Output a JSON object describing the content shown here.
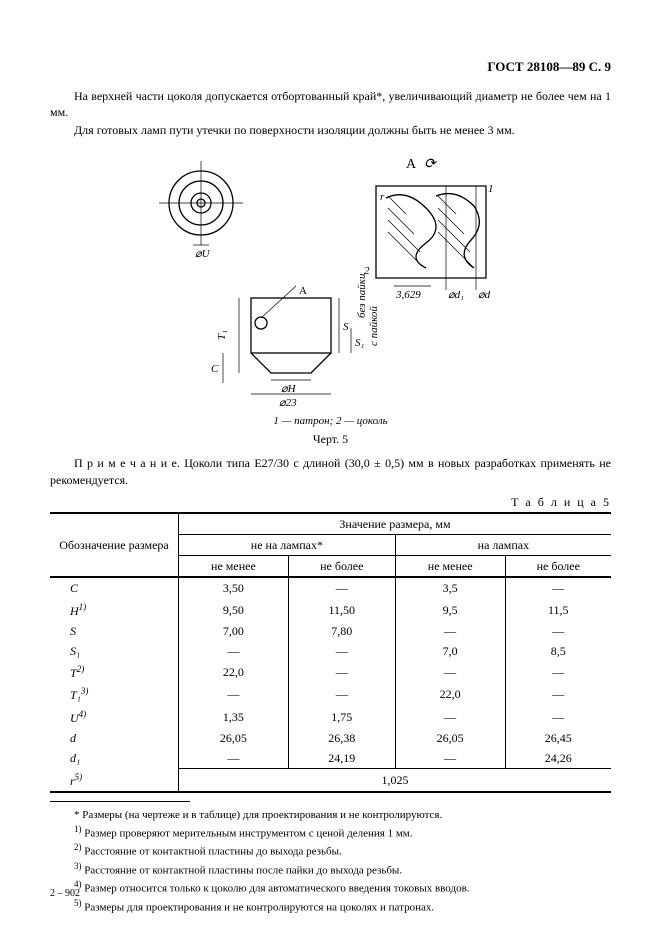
{
  "header": {
    "docid": "ГОСТ 28108—89 С. 9"
  },
  "body": {
    "p1": "На верхней части цоколя допускается отбортованный край*, увеличивающий диаметр не более чем на 1 мм.",
    "p2": "Для готовых ламп пути утечки по поверхности изоляции должны быть не менее 3 мм."
  },
  "figure": {
    "topRight": "A",
    "labels": {
      "one": "1",
      "two": "2",
      "threadDim": "3,629",
      "d": "⌀d",
      "d1": "⌀d₁",
      "r": "r",
      "U": "⌀U",
      "H": "⌀H",
      "T1": "T₁",
      "S": "S",
      "S1": "S₁",
      "C": "C",
      "A": "A",
      "base23": "⌀23",
      "sideNote1": "без пайки",
      "sideNote2": "с пайкой"
    },
    "caption1": "1 — патрон; 2 — цоколь",
    "caption2": "Черт. 5"
  },
  "note": {
    "lead": "П р и м е ч а н и е.",
    "text": " Цоколи типа Е27/30 с длиной (30,0 ± 0,5) мм в новых разработках применять не рекомендуется."
  },
  "table": {
    "label": "Т а б л и ц а  5",
    "headers": {
      "col1": "Обозначение размера",
      "group": "Значение размера, мм",
      "sub1": "не на лампах*",
      "sub2": "на лампах",
      "min": "не менее",
      "max": "не более"
    },
    "rows": [
      {
        "name": "C",
        "a": "3,50",
        "b": "—",
        "c": "3,5",
        "d": "—"
      },
      {
        "name": "H",
        "sup": "1)",
        "a": "9,50",
        "b": "11,50",
        "c": "9,5",
        "d": "11,5"
      },
      {
        "name": "S",
        "a": "7,00",
        "b": "7,80",
        "c": "—",
        "d": "—"
      },
      {
        "name": "S₁",
        "a": "—",
        "b": "—",
        "c": "7,0",
        "d": "8,5"
      },
      {
        "name": "T",
        "sup": "2)",
        "a": "22,0",
        "b": "—",
        "c": "—",
        "d": "—"
      },
      {
        "name": "T₁",
        "sup": "3)",
        "a": "—",
        "b": "—",
        "c": "22,0",
        "d": "—"
      },
      {
        "name": "U",
        "sup": "4)",
        "a": "1,35",
        "b": "1,75",
        "c": "—",
        "d": "—"
      },
      {
        "name": "d",
        "a": "26,05",
        "b": "26,38",
        "c": "26,05",
        "d": "26,45"
      },
      {
        "name": "d₁",
        "a": "—",
        "b": "24,19",
        "c": "—",
        "d": "24,26"
      }
    ],
    "finalRow": {
      "name": "r",
      "sup": "5)",
      "value": "1,025"
    }
  },
  "footnotes": {
    "star": "* Размеры (на чертеже и в таблице) для проектирования и не контролируются.",
    "n1": "Размер проверяют мерительным инструментом с ценой деления 1 мм.",
    "n2": "Расстояние от контактной пластины до выхода резьбы.",
    "n3": "Расстояние от контактной пластины после пайки до выхода резьбы.",
    "n4": "Размер относится только к цоколю для автоматического введения токовых вводов.",
    "n5": "Размеры для проектирования и не контролируются на цоколях и патронах."
  },
  "printMark": "2 – 902"
}
